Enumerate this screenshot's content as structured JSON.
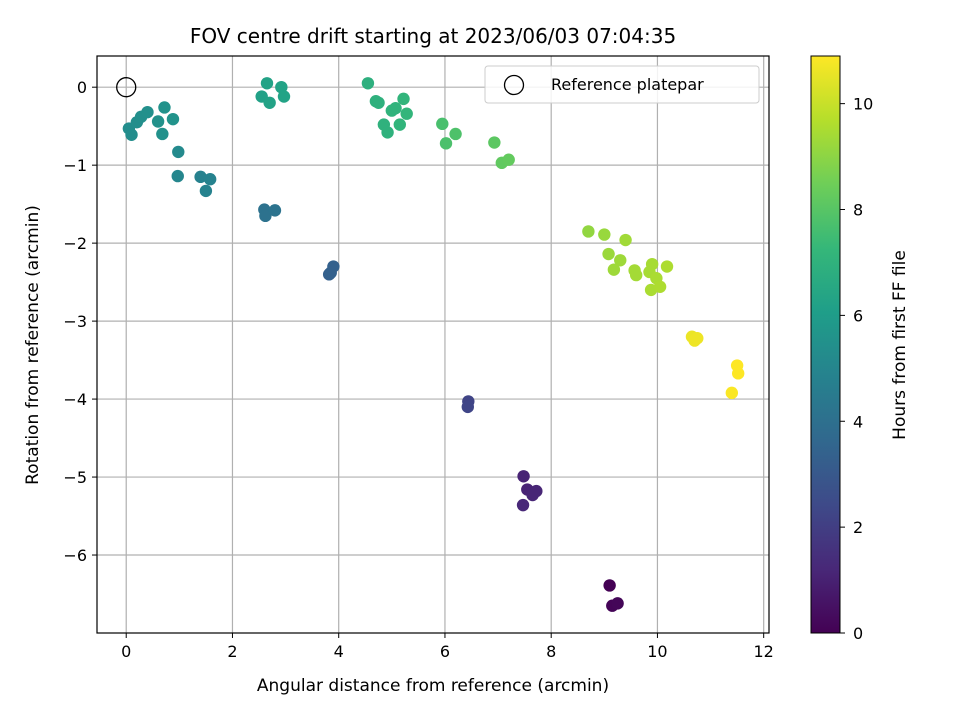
{
  "chart_data": {
    "type": "scatter",
    "title": "FOV centre drift starting at 2023/06/03 07:04:35",
    "xlabel": "Angular distance from reference (arcmin)",
    "ylabel": "Rotation from reference (arcmin)",
    "xlim": [
      -0.55,
      12.1
    ],
    "ylim": [
      -7.0,
      0.4
    ],
    "x_ticks": [
      0,
      2,
      4,
      6,
      8,
      10,
      12
    ],
    "y_ticks": [
      0,
      -1,
      -2,
      -3,
      -4,
      -5,
      -6
    ],
    "grid": true,
    "legend": {
      "placement": "top-right",
      "entries": [
        {
          "name": "Reference platepar",
          "marker": "open-circle"
        }
      ]
    },
    "reference_point": {
      "x": 0,
      "y": 0
    },
    "colorbar": {
      "label": "Hours from first FF file",
      "range": [
        0,
        10.9
      ],
      "ticks": [
        0,
        2,
        4,
        6,
        8,
        10
      ],
      "colormap": "viridis"
    },
    "points": [
      {
        "x": 9.1,
        "y": -6.39,
        "h": 0.0
      },
      {
        "x": 9.15,
        "y": -6.65,
        "h": 0.1
      },
      {
        "x": 9.25,
        "y": -6.62,
        "h": 0.15
      },
      {
        "x": 7.48,
        "y": -4.99,
        "h": 1.1
      },
      {
        "x": 7.55,
        "y": -5.16,
        "h": 1.1
      },
      {
        "x": 7.65,
        "y": -5.23,
        "h": 1.15
      },
      {
        "x": 7.72,
        "y": -5.18,
        "h": 1.15
      },
      {
        "x": 7.47,
        "y": -5.36,
        "h": 1.2
      },
      {
        "x": 6.44,
        "y": -4.03,
        "h": 2.2
      },
      {
        "x": 6.43,
        "y": -4.1,
        "h": 2.25
      },
      {
        "x": 3.82,
        "y": -2.4,
        "h": 3.3
      },
      {
        "x": 3.9,
        "y": -2.3,
        "h": 3.35
      },
      {
        "x": 3.85,
        "y": -2.38,
        "h": 3.35
      },
      {
        "x": 2.6,
        "y": -1.57,
        "h": 4.1
      },
      {
        "x": 2.62,
        "y": -1.65,
        "h": 4.1
      },
      {
        "x": 2.8,
        "y": -1.58,
        "h": 4.15
      },
      {
        "x": 1.4,
        "y": -1.15,
        "h": 4.8
      },
      {
        "x": 1.58,
        "y": -1.18,
        "h": 4.85
      },
      {
        "x": 1.5,
        "y": -1.33,
        "h": 4.85
      },
      {
        "x": 0.97,
        "y": -1.14,
        "h": 5.0
      },
      {
        "x": 0.98,
        "y": -0.83,
        "h": 5.2
      },
      {
        "x": 0.05,
        "y": -0.53,
        "h": 5.3
      },
      {
        "x": 0.1,
        "y": -0.61,
        "h": 5.3
      },
      {
        "x": 0.2,
        "y": -0.45,
        "h": 5.35
      },
      {
        "x": 0.28,
        "y": -0.38,
        "h": 5.4
      },
      {
        "x": 0.4,
        "y": -0.32,
        "h": 5.45
      },
      {
        "x": 0.6,
        "y": -0.44,
        "h": 5.5
      },
      {
        "x": 0.68,
        "y": -0.6,
        "h": 5.5
      },
      {
        "x": 0.72,
        "y": -0.26,
        "h": 5.55
      },
      {
        "x": 0.88,
        "y": -0.41,
        "h": 5.6
      },
      {
        "x": 2.55,
        "y": -0.12,
        "h": 6.2
      },
      {
        "x": 2.65,
        "y": 0.05,
        "h": 6.25
      },
      {
        "x": 2.7,
        "y": -0.2,
        "h": 6.25
      },
      {
        "x": 2.92,
        "y": 0.0,
        "h": 6.3
      },
      {
        "x": 2.97,
        "y": -0.12,
        "h": 6.3
      },
      {
        "x": 4.55,
        "y": 0.05,
        "h": 6.9
      },
      {
        "x": 4.7,
        "y": -0.18,
        "h": 6.95
      },
      {
        "x": 4.75,
        "y": -0.2,
        "h": 6.95
      },
      {
        "x": 4.85,
        "y": -0.48,
        "h": 7.0
      },
      {
        "x": 4.92,
        "y": -0.58,
        "h": 7.0
      },
      {
        "x": 5.0,
        "y": -0.3,
        "h": 7.05
      },
      {
        "x": 5.07,
        "y": -0.27,
        "h": 7.05
      },
      {
        "x": 5.15,
        "y": -0.48,
        "h": 7.1
      },
      {
        "x": 5.22,
        "y": -0.15,
        "h": 7.1
      },
      {
        "x": 5.28,
        "y": -0.34,
        "h": 7.15
      },
      {
        "x": 5.95,
        "y": -0.47,
        "h": 7.7
      },
      {
        "x": 6.02,
        "y": -0.72,
        "h": 7.75
      },
      {
        "x": 6.2,
        "y": -0.6,
        "h": 7.8
      },
      {
        "x": 6.93,
        "y": -0.71,
        "h": 8.1
      },
      {
        "x": 7.07,
        "y": -0.97,
        "h": 8.2
      },
      {
        "x": 7.2,
        "y": -0.93,
        "h": 8.25
      },
      {
        "x": 8.7,
        "y": -1.85,
        "h": 9.1
      },
      {
        "x": 9.0,
        "y": -1.89,
        "h": 9.2
      },
      {
        "x": 9.08,
        "y": -2.14,
        "h": 9.25
      },
      {
        "x": 9.18,
        "y": -2.34,
        "h": 9.3
      },
      {
        "x": 9.3,
        "y": -2.22,
        "h": 9.3
      },
      {
        "x": 9.4,
        "y": -1.96,
        "h": 9.35
      },
      {
        "x": 9.57,
        "y": -2.35,
        "h": 9.4
      },
      {
        "x": 9.6,
        "y": -2.41,
        "h": 9.4
      },
      {
        "x": 9.85,
        "y": -2.37,
        "h": 9.45
      },
      {
        "x": 9.9,
        "y": -2.27,
        "h": 9.45
      },
      {
        "x": 9.88,
        "y": -2.6,
        "h": 9.5
      },
      {
        "x": 9.98,
        "y": -2.45,
        "h": 9.5
      },
      {
        "x": 10.05,
        "y": -2.56,
        "h": 9.55
      },
      {
        "x": 10.18,
        "y": -2.3,
        "h": 9.55
      },
      {
        "x": 10.65,
        "y": -3.2,
        "h": 10.6
      },
      {
        "x": 10.7,
        "y": -3.25,
        "h": 10.65
      },
      {
        "x": 10.75,
        "y": -3.22,
        "h": 10.65
      },
      {
        "x": 11.4,
        "y": -3.92,
        "h": 10.85
      },
      {
        "x": 11.5,
        "y": -3.57,
        "h": 10.9
      },
      {
        "x": 11.52,
        "y": -3.67,
        "h": 10.9
      }
    ]
  }
}
